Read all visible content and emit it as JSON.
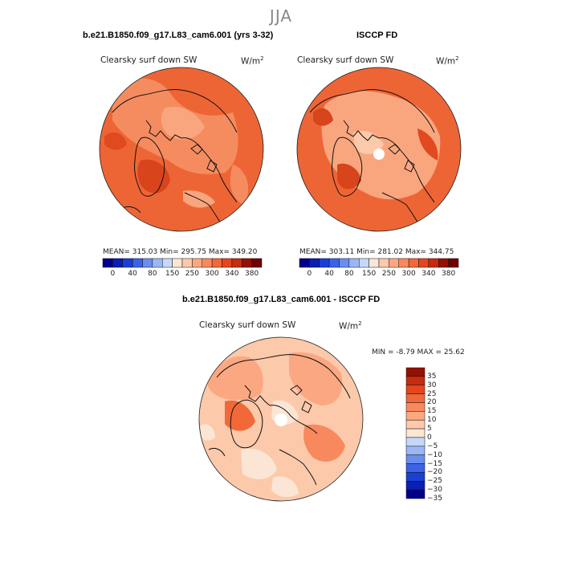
{
  "title": "JJA",
  "panels": [
    {
      "case": "b.e21.B1850.f09_g17.L83_cam6.001 (yrs 3-32)",
      "variable": "Clearsky surf down SW",
      "units_base": "W/m",
      "units_exp": "2",
      "stats": "MEAN= 315.03   Min= 295.75   Max= 349.20"
    },
    {
      "case": "ISCCP FD",
      "variable": "Clearsky surf down SW",
      "units_base": "W/m",
      "units_exp": "2",
      "stats": "MEAN= 303.11   Min= 281.02   Max= 344.75"
    }
  ],
  "diff_panel": {
    "case": "b.e21.B1850.f09_g17.L83_cam6.001 - ISCCP FD",
    "variable": "Clearsky surf down SW",
    "units_base": "W/m",
    "units_exp": "2",
    "stats": "MIN =   -8.79  MAX =   25.62"
  },
  "colorbar_abs": {
    "colors": [
      "#00008b",
      "#0a1fb3",
      "#1c3fd3",
      "#3a63e8",
      "#6a8df0",
      "#9bb6f5",
      "#c6d8fa",
      "#fbe6d6",
      "#fcc9ab",
      "#fba882",
      "#f8895e",
      "#f26838",
      "#e5461e",
      "#c52c10",
      "#951000",
      "#700000"
    ],
    "labels": [
      "0",
      "40",
      "80",
      "150",
      "250",
      "300",
      "340",
      "380"
    ]
  },
  "colorbar_diff": {
    "colors": [
      "#00008b",
      "#0a1fb3",
      "#1c3fd3",
      "#3a63e8",
      "#6a8df0",
      "#9bb6f5",
      "#c6d8fa",
      "#fbe6d6",
      "#fcc9ab",
      "#fba882",
      "#f8895e",
      "#f26838",
      "#e5461e",
      "#c52c10",
      "#951000"
    ],
    "labels": [
      "35",
      "30",
      "25",
      "20",
      "15",
      "10",
      "5",
      "0",
      "−5",
      "−10",
      "−15",
      "−20",
      "−25",
      "−30",
      "−35"
    ]
  }
}
